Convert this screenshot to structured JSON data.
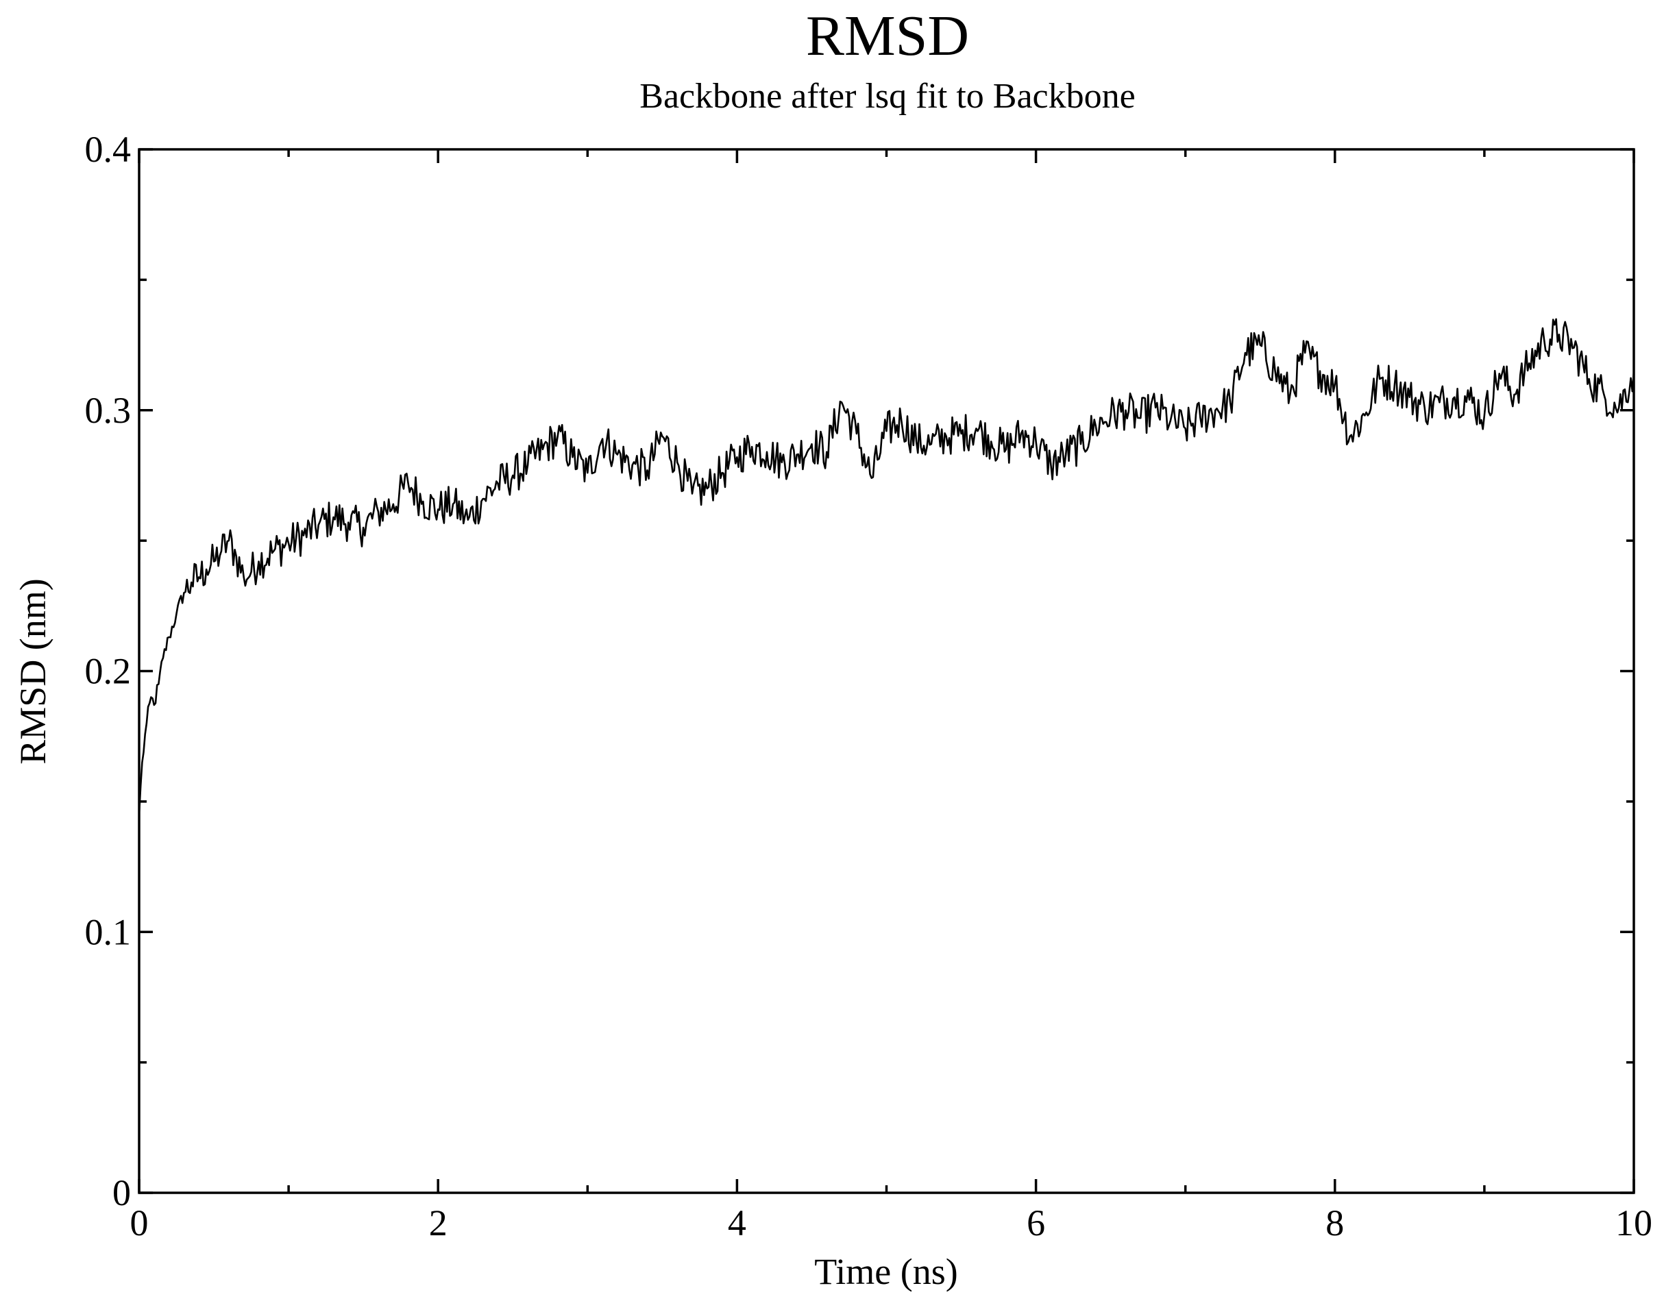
{
  "chart_data": {
    "type": "line",
    "title": "RMSD",
    "subtitle": "Backbone after lsq fit to Backbone",
    "xlabel": "Time (ns)",
    "ylabel": "RMSD (nm)",
    "xlim": [
      0,
      10
    ],
    "ylim": [
      0,
      0.4
    ],
    "x_ticks": [
      0,
      2,
      4,
      6,
      8,
      10
    ],
    "x_tick_labels": [
      "0",
      "2",
      "4",
      "6",
      "8",
      "10"
    ],
    "x_minor_ticks": [
      1,
      3,
      5,
      7,
      9
    ],
    "y_ticks": [
      0,
      0.1,
      0.2,
      0.3,
      0.4
    ],
    "y_tick_labels": [
      "0",
      "0.1",
      "0.2",
      "0.3",
      "0.4"
    ],
    "y_minor_ticks": [
      0.05,
      0.15,
      0.25,
      0.35
    ],
    "grid": false,
    "legend": "none",
    "series": [
      {
        "color": "#000000",
        "x": [
          0,
          0.02,
          0.05,
          0.08,
          0.1,
          0.13,
          0.16,
          0.2,
          0.25,
          0.3,
          0.35,
          0.4,
          0.45,
          0.5,
          0.55,
          0.6,
          0.65,
          0.7,
          0.75,
          0.8,
          0.9,
          1.0,
          1.1,
          1.2,
          1.3,
          1.4,
          1.5,
          1.6,
          1.7,
          1.8,
          1.9,
          2.0,
          2.1,
          2.2,
          2.3,
          2.4,
          2.5,
          2.6,
          2.7,
          2.8,
          2.9,
          3.0,
          3.1,
          3.2,
          3.3,
          3.4,
          3.5,
          3.6,
          3.7,
          3.8,
          3.9,
          4.0,
          4.1,
          4.2,
          4.3,
          4.4,
          4.5,
          4.6,
          4.7,
          4.8,
          4.9,
          5.0,
          5.1,
          5.2,
          5.3,
          5.4,
          5.5,
          5.6,
          5.7,
          5.8,
          5.9,
          6.0,
          6.1,
          6.2,
          6.3,
          6.4,
          6.5,
          6.6,
          6.7,
          6.8,
          6.9,
          7.0,
          7.1,
          7.2,
          7.3,
          7.4,
          7.5,
          7.6,
          7.7,
          7.8,
          7.9,
          8.0,
          8.1,
          8.2,
          8.3,
          8.4,
          8.5,
          8.6,
          8.7,
          8.8,
          8.9,
          9.0,
          9.1,
          9.2,
          9.3,
          9.4,
          9.5,
          9.6,
          9.7,
          9.8,
          9.9,
          10.0
        ],
        "y": [
          0.145,
          0.165,
          0.18,
          0.19,
          0.187,
          0.195,
          0.205,
          0.213,
          0.222,
          0.23,
          0.234,
          0.236,
          0.239,
          0.242,
          0.246,
          0.25,
          0.244,
          0.236,
          0.238,
          0.242,
          0.246,
          0.249,
          0.252,
          0.256,
          0.259,
          0.257,
          0.255,
          0.261,
          0.264,
          0.272,
          0.265,
          0.262,
          0.264,
          0.258,
          0.266,
          0.272,
          0.275,
          0.279,
          0.285,
          0.29,
          0.282,
          0.276,
          0.289,
          0.283,
          0.279,
          0.277,
          0.29,
          0.28,
          0.268,
          0.27,
          0.276,
          0.282,
          0.286,
          0.284,
          0.28,
          0.283,
          0.287,
          0.284,
          0.303,
          0.291,
          0.274,
          0.292,
          0.296,
          0.288,
          0.287,
          0.29,
          0.291,
          0.293,
          0.288,
          0.285,
          0.291,
          0.288,
          0.279,
          0.283,
          0.287,
          0.294,
          0.298,
          0.3,
          0.297,
          0.301,
          0.296,
          0.293,
          0.297,
          0.3,
          0.303,
          0.322,
          0.325,
          0.315,
          0.306,
          0.322,
          0.315,
          0.31,
          0.29,
          0.298,
          0.312,
          0.31,
          0.305,
          0.301,
          0.303,
          0.305,
          0.304,
          0.298,
          0.314,
          0.306,
          0.318,
          0.327,
          0.329,
          0.324,
          0.312,
          0.306,
          0.301,
          0.315
        ]
      }
    ]
  }
}
